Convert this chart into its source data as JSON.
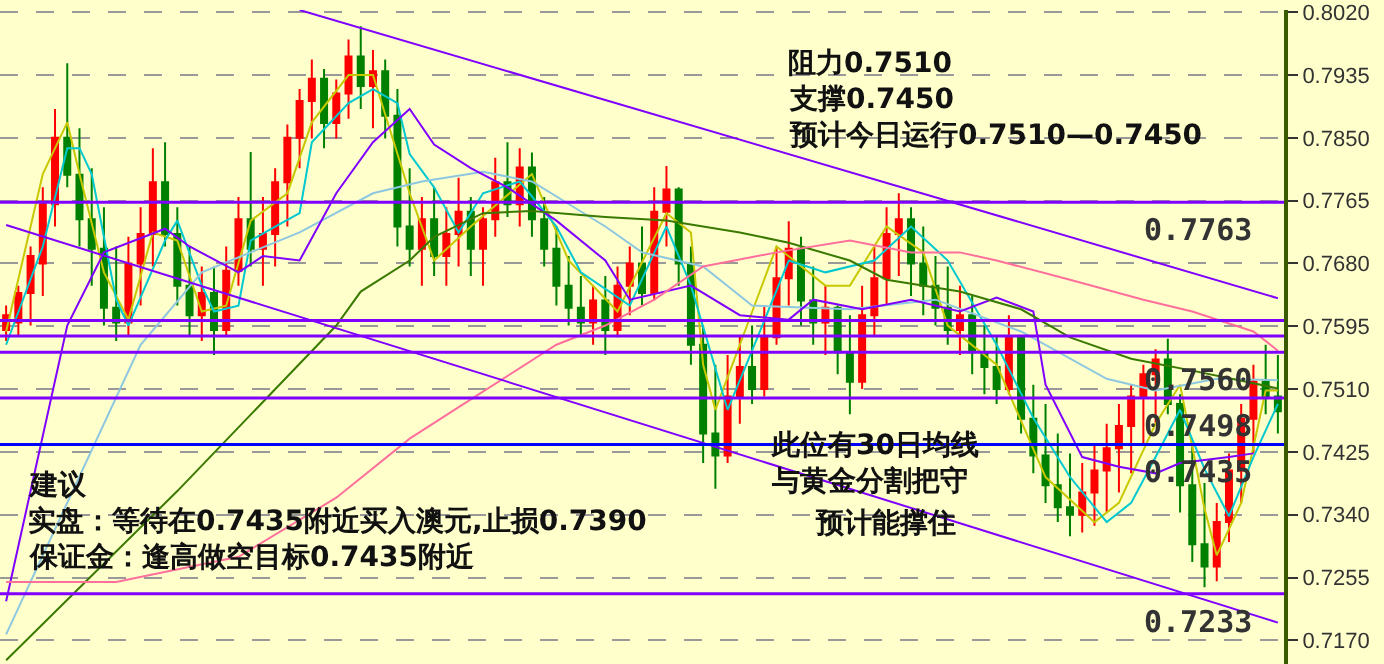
{
  "chart_data": {
    "type": "candlestick",
    "categories": [
      null,
      null,
      null,
      null,
      null,
      null,
      null,
      null,
      null,
      null,
      null,
      null,
      null,
      null,
      null,
      null,
      null,
      null,
      null,
      null,
      null,
      null,
      null,
      null,
      null,
      null,
      null,
      null,
      null,
      null,
      null,
      null,
      null,
      null,
      null,
      null,
      null,
      null,
      null,
      null,
      null,
      null,
      null,
      null,
      null,
      null,
      null,
      null,
      null,
      null,
      null,
      null,
      null,
      null,
      null,
      null,
      null,
      null,
      null,
      null,
      null,
      null,
      null,
      null,
      null,
      null,
      null,
      null,
      null,
      null,
      null,
      null,
      null,
      null,
      null,
      null,
      null,
      null,
      null,
      null,
      null,
      null,
      null,
      null,
      null,
      null,
      null,
      null,
      null,
      null,
      null,
      null,
      null,
      null,
      null,
      null,
      null,
      null,
      null,
      null,
      null,
      null,
      null,
      null,
      null
    ],
    "ohlc": [
      [
        0.759,
        0.7623,
        0.7575,
        0.761
      ],
      [
        0.76,
        0.765,
        0.7583,
        0.764
      ],
      [
        0.764,
        0.7703,
        0.7596,
        0.769
      ],
      [
        0.768,
        0.7783,
        0.7636,
        0.776
      ],
      [
        0.776,
        0.7889,
        0.773,
        0.785
      ],
      [
        0.785,
        0.7951,
        0.7783,
        0.78
      ],
      [
        0.78,
        0.7863,
        0.7703,
        0.774
      ],
      [
        0.774,
        0.7809,
        0.765,
        0.77
      ],
      [
        0.77,
        0.7756,
        0.7596,
        0.762
      ],
      [
        0.762,
        0.7703,
        0.7575,
        0.76
      ],
      [
        0.76,
        0.7716,
        0.7583,
        0.768
      ],
      [
        0.768,
        0.7756,
        0.7623,
        0.772
      ],
      [
        0.772,
        0.7836,
        0.7676,
        0.779
      ],
      [
        0.779,
        0.7844,
        0.7703,
        0.772
      ],
      [
        0.772,
        0.7756,
        0.7623,
        0.765
      ],
      [
        0.765,
        0.7703,
        0.7583,
        0.761
      ],
      [
        0.761,
        0.7676,
        0.7575,
        0.764
      ],
      [
        0.764,
        0.7676,
        0.7556,
        0.759
      ],
      [
        0.759,
        0.7703,
        0.7583,
        0.767
      ],
      [
        0.767,
        0.777,
        0.765,
        0.774
      ],
      [
        0.774,
        0.7831,
        0.7676,
        0.77
      ],
      [
        0.77,
        0.777,
        0.765,
        0.772
      ],
      [
        0.772,
        0.7809,
        0.7676,
        0.779
      ],
      [
        0.779,
        0.7868,
        0.773,
        0.785
      ],
      [
        0.785,
        0.7916,
        0.7809,
        0.79
      ],
      [
        0.79,
        0.7956,
        0.7849,
        0.793
      ],
      [
        0.793,
        0.7943,
        0.7836,
        0.787
      ],
      [
        0.787,
        0.7929,
        0.7849,
        0.791
      ],
      [
        0.791,
        0.7983,
        0.7876,
        0.796
      ],
      [
        0.796,
        0.8001,
        0.7889,
        0.792
      ],
      [
        0.792,
        0.7969,
        0.7863,
        0.794
      ],
      [
        0.794,
        0.7956,
        0.7849,
        0.788
      ],
      [
        0.788,
        0.7916,
        0.7703,
        0.773
      ],
      [
        0.773,
        0.7809,
        0.7676,
        0.77
      ],
      [
        0.77,
        0.777,
        0.765,
        0.774
      ],
      [
        0.774,
        0.7783,
        0.7663,
        0.769
      ],
      [
        0.769,
        0.7756,
        0.765,
        0.772
      ],
      [
        0.772,
        0.7796,
        0.7676,
        0.775
      ],
      [
        0.775,
        0.777,
        0.7663,
        0.77
      ],
      [
        0.77,
        0.7756,
        0.765,
        0.774
      ],
      [
        0.774,
        0.7823,
        0.7716,
        0.779
      ],
      [
        0.779,
        0.7844,
        0.7743,
        0.776
      ],
      [
        0.776,
        0.7836,
        0.773,
        0.781
      ],
      [
        0.781,
        0.783,
        0.7716,
        0.774
      ],
      [
        0.774,
        0.777,
        0.7676,
        0.77
      ],
      [
        0.77,
        0.773,
        0.7623,
        0.765
      ],
      [
        0.765,
        0.769,
        0.7596,
        0.762
      ],
      [
        0.762,
        0.7663,
        0.7583,
        0.76
      ],
      [
        0.76,
        0.765,
        0.757,
        0.763
      ],
      [
        0.763,
        0.7663,
        0.7556,
        0.759
      ],
      [
        0.759,
        0.7676,
        0.758,
        0.765
      ],
      [
        0.765,
        0.7703,
        0.761,
        0.768
      ],
      [
        0.768,
        0.773,
        0.7623,
        0.764
      ],
      [
        0.764,
        0.7783,
        0.763,
        0.775
      ],
      [
        0.775,
        0.7812,
        0.7703,
        0.778
      ],
      [
        0.778,
        0.7783,
        0.765,
        0.768
      ],
      [
        0.768,
        0.7703,
        0.7543,
        0.757
      ],
      [
        0.757,
        0.7596,
        0.741,
        0.745
      ],
      [
        0.745,
        0.7543,
        0.7375,
        0.742
      ],
      [
        0.742,
        0.7556,
        0.741,
        0.75
      ],
      [
        0.75,
        0.7583,
        0.7463,
        0.754
      ],
      [
        0.754,
        0.7596,
        0.749,
        0.751
      ],
      [
        0.751,
        0.7623,
        0.75,
        0.758
      ],
      [
        0.758,
        0.7703,
        0.757,
        0.766
      ],
      [
        0.766,
        0.7737,
        0.7623,
        0.77
      ],
      [
        0.77,
        0.7716,
        0.7596,
        0.763
      ],
      [
        0.763,
        0.7676,
        0.757,
        0.76
      ],
      [
        0.76,
        0.765,
        0.7556,
        0.762
      ],
      [
        0.762,
        0.7623,
        0.753,
        0.756
      ],
      [
        0.756,
        0.761,
        0.7476,
        0.752
      ],
      [
        0.752,
        0.765,
        0.751,
        0.761
      ],
      [
        0.761,
        0.7703,
        0.7583,
        0.766
      ],
      [
        0.766,
        0.7756,
        0.7623,
        0.772
      ],
      [
        0.772,
        0.7775,
        0.7663,
        0.774
      ],
      [
        0.774,
        0.7756,
        0.7636,
        0.768
      ],
      [
        0.768,
        0.773,
        0.761,
        0.765
      ],
      [
        0.765,
        0.769,
        0.7596,
        0.762
      ],
      [
        0.762,
        0.7676,
        0.757,
        0.759
      ],
      [
        0.759,
        0.765,
        0.7556,
        0.761
      ],
      [
        0.761,
        0.7636,
        0.753,
        0.756
      ],
      [
        0.756,
        0.7596,
        0.7503,
        0.754
      ],
      [
        0.754,
        0.7583,
        0.749,
        0.751
      ],
      [
        0.751,
        0.761,
        0.7503,
        0.758
      ],
      [
        0.758,
        0.7583,
        0.745,
        0.747
      ],
      [
        0.747,
        0.7516,
        0.7396,
        0.742
      ],
      [
        0.742,
        0.749,
        0.7356,
        0.738
      ],
      [
        0.738,
        0.745,
        0.733,
        0.735
      ],
      [
        0.735,
        0.7423,
        0.7311,
        0.734
      ],
      [
        0.734,
        0.741,
        0.7316,
        0.737
      ],
      [
        0.737,
        0.7436,
        0.7325,
        0.74
      ],
      [
        0.74,
        0.7463,
        0.7343,
        0.743
      ],
      [
        0.743,
        0.749,
        0.737,
        0.746
      ],
      [
        0.746,
        0.7516,
        0.7396,
        0.75
      ],
      [
        0.75,
        0.7543,
        0.7436,
        0.753
      ],
      [
        0.753,
        0.7564,
        0.7463,
        0.755
      ],
      [
        0.755,
        0.7578,
        0.7476,
        0.749
      ],
      [
        0.749,
        0.7503,
        0.7343,
        0.738
      ],
      [
        0.738,
        0.7436,
        0.7276,
        0.73
      ],
      [
        0.73,
        0.7383,
        0.7242,
        0.727
      ],
      [
        0.727,
        0.7356,
        0.725,
        0.733
      ],
      [
        0.733,
        0.7423,
        0.7303,
        0.74
      ],
      [
        0.74,
        0.749,
        0.7356,
        0.747
      ],
      [
        0.747,
        0.7543,
        0.7423,
        0.752
      ],
      [
        0.752,
        0.757,
        0.7476,
        0.75
      ],
      [
        0.75,
        0.7556,
        0.745,
        0.748
      ]
    ],
    "colors": [
      "#ff0000",
      "#ff0000",
      "#ff0000",
      "#ff0000",
      "#ff0000",
      "#008000",
      "#008000",
      "#008000",
      "#008000",
      "#008000",
      "#ff0000",
      "#ff0000",
      "#ff0000",
      "#008000",
      "#008000",
      "#008000",
      "#ff0000",
      "#008000",
      "#ff0000",
      "#ff0000",
      "#008000",
      "#ff0000",
      "#ff0000",
      "#ff0000",
      "#ff0000",
      "#ff0000",
      "#008000",
      "#ff0000",
      "#ff0000",
      "#008000",
      "#ff0000",
      "#008000",
      "#008000",
      "#008000",
      "#ff0000",
      "#008000",
      "#ff0000",
      "#ff0000",
      "#008000",
      "#ff0000",
      "#ff0000",
      "#008000",
      "#ff0000",
      "#008000",
      "#008000",
      "#008000",
      "#008000",
      "#008000",
      "#ff0000",
      "#008000",
      "#ff0000",
      "#ff0000",
      "#008000",
      "#ff0000",
      "#ff0000",
      "#008000",
      "#008000",
      "#008000",
      "#008000",
      "#ff0000",
      "#ff0000",
      "#008000",
      "#ff0000",
      "#ff0000",
      "#ff0000",
      "#008000",
      "#008000",
      "#ff0000",
      "#008000",
      "#008000",
      "#ff0000",
      "#ff0000",
      "#ff0000",
      "#ff0000",
      "#008000",
      "#008000",
      "#008000",
      "#008000",
      "#ff0000",
      "#008000",
      "#008000",
      "#008000",
      "#ff0000",
      "#008000",
      "#008000",
      "#008000",
      "#008000",
      "#008000",
      "#ff0000",
      "#ff0000",
      "#ff0000",
      "#ff0000",
      "#ff0000",
      "#ff0000",
      "#ff0000",
      "#008000",
      "#008000",
      "#008000",
      "#008000",
      "#ff0000",
      "#ff0000",
      "#ff0000",
      "#ff0000",
      "#008000",
      "#008000"
    ],
    "series": [
      {
        "type": "line",
        "color": "#c8c800",
        "values": [
          0.7588,
          null,
          null,
          0.7801,
          null,
          0.7871,
          0.7801,
          null,
          0.7668,
          null,
          0.7604,
          null,
          0.7722,
          null,
          0.7711,
          null,
          0.7615,
          null,
          0.7623,
          null,
          0.7738,
          null,
          null,
          0.7775,
          null,
          0.7871,
          null,
          null,
          0.7935,
          null,
          0.7935,
          null,
          null,
          0.7775,
          null,
          0.7684,
          null,
          null,
          0.773,
          null,
          null,
          null,
          null,
          0.7801,
          null,
          null,
          0.7684,
          null,
          null,
          null,
          0.7615,
          null,
          null,
          null,
          0.7748,
          null,
          0.7722,
          0.7543,
          0.7482,
          null,
          0.757,
          null,
          null,
          0.7703,
          null,
          null,
          null,
          0.765,
          null,
          0.765,
          null,
          null,
          0.773,
          null,
          null,
          0.7695,
          null,
          0.7596,
          null,
          null,
          null,
          0.7543,
          null,
          null,
          null,
          0.7391,
          null,
          null,
          null,
          0.733,
          null,
          0.7356,
          null,
          null,
          0.7463,
          null,
          0.7516,
          null,
          0.7348,
          0.7285,
          null,
          0.7356,
          null,
          0.7508,
          0.7508
        ]
      },
      {
        "type": "line",
        "color": "#00c8d0",
        "values": [
          0.757,
          null,
          null,
          0.7703,
          null,
          0.7836,
          0.7836,
          0.7801,
          null,
          0.7631,
          0.7596,
          null,
          null,
          0.7711,
          0.7738,
          null,
          0.765,
          0.7615,
          null,
          0.7623,
          0.7711,
          null,
          0.773,
          null,
          0.7748,
          0.7844,
          null,
          null,
          0.7897,
          null,
          0.7916,
          null,
          0.7897,
          0.7828,
          null,
          0.7783,
          null,
          0.7722,
          null,
          0.7775,
          null,
          null,
          0.7791,
          null,
          null,
          0.773,
          null,
          0.7668,
          null,
          null,
          null,
          0.7623,
          null,
          null,
          0.773,
          null,
          0.765,
          null,
          null,
          0.7482,
          null,
          0.7562,
          null,
          null,
          0.7684,
          null,
          null,
          0.7668,
          null,
          null,
          null,
          0.7684,
          null,
          null,
          0.773,
          null,
          null,
          0.7684,
          null,
          null,
          null,
          0.757,
          null,
          null,
          0.7471,
          null,
          null,
          0.7391,
          null,
          null,
          0.733,
          null,
          0.7356,
          null,
          0.7418,
          null,
          0.7482,
          null,
          0.7402,
          null,
          0.7338,
          null,
          0.7418,
          null,
          0.749
        ]
      },
      {
        "type": "line",
        "color": "#8ec8e0",
        "values": [
          0.7178,
          null,
          null,
          null,
          null,
          null,
          null,
          null,
          null,
          null,
          null,
          0.757,
          null,
          null,
          null,
          null,
          0.7668,
          null,
          null,
          null,
          0.7695,
          null,
          null,
          null,
          0.7722,
          null,
          null,
          null,
          null,
          null,
          0.7775,
          null,
          null,
          null,
          0.7791,
          null,
          null,
          null,
          null,
          0.7804,
          null,
          null,
          null,
          0.7791,
          null,
          null,
          null,
          null,
          null,
          0.773,
          null,
          null,
          0.7695,
          null,
          null,
          null,
          null,
          0.7676,
          null,
          null,
          null,
          0.7623,
          null,
          null,
          null,
          null,
          null,
          null,
          null,
          0.7618,
          null,
          null,
          null,
          null,
          null,
          null,
          0.7631,
          null,
          null,
          null,
          null,
          null,
          null,
          0.7588,
          null,
          null,
          null,
          null,
          null,
          null,
          0.7524,
          null,
          null,
          null,
          0.7508,
          null,
          null,
          null,
          null,
          0.7524,
          null,
          null,
          null,
          null,
          0.7522
        ]
      },
      {
        "type": "line",
        "color": "#8000ff",
        "values": [
          0.7223,
          null,
          null,
          null,
          null,
          0.7596,
          null,
          null,
          0.7695,
          null,
          null,
          null,
          null,
          0.7727,
          null,
          0.7703,
          null,
          null,
          null,
          0.7668,
          null,
          0.769,
          null,
          null,
          0.7684,
          null,
          null,
          0.7775,
          null,
          null,
          0.7844,
          null,
          null,
          0.7889,
          null,
          0.7841,
          null,
          null,
          0.7809,
          null,
          null,
          0.7783,
          null,
          null,
          null,
          0.7738,
          null,
          null,
          null,
          0.7684,
          null,
          0.7631,
          null,
          null,
          null,
          null,
          0.765,
          null,
          null,
          null,
          0.761,
          null,
          null,
          null,
          0.7604,
          null,
          0.7631,
          null,
          null,
          null,
          0.7618,
          null,
          null,
          null,
          0.7631,
          null,
          null,
          null,
          0.7615,
          null,
          null,
          0.7634,
          null,
          null,
          0.7615,
          0.7516,
          null,
          null,
          0.7418,
          null,
          null,
          0.7405,
          null,
          null,
          0.7396,
          null,
          0.741,
          null,
          null,
          null,
          0.7418,
          null,
          0.7423,
          null,
          null
        ]
      },
      {
        "type": "line",
        "color": "#3a7a00",
        "values": [
          0.7143,
          null,
          null,
          null,
          null,
          null,
          null,
          null,
          null,
          null,
          null,
          null,
          null,
          null,
          0.7372,
          null,
          null,
          null,
          null,
          null,
          null,
          null,
          null,
          null,
          null,
          null,
          null,
          0.7596,
          null,
          0.7642,
          null,
          null,
          null,
          0.7684,
          null,
          0.7716,
          null,
          null,
          null,
          0.7748,
          null,
          null,
          null,
          0.7751,
          null,
          null,
          null,
          null,
          null,
          0.7743,
          null,
          null,
          null,
          null,
          0.7738,
          null,
          null,
          null,
          null,
          null,
          0.7722,
          null,
          null,
          null,
          0.7708,
          null,
          null,
          null,
          null,
          0.7684,
          null,
          null,
          0.7658,
          null,
          null,
          null,
          null,
          null,
          0.7642,
          null,
          null,
          null,
          null,
          0.7618,
          null,
          null,
          null,
          0.758,
          null,
          null,
          null,
          null,
          0.7551,
          null,
          null,
          null,
          null,
          0.7535,
          null,
          null,
          null,
          null,
          null,
          null,
          0.7511
        ]
      },
      {
        "type": "line",
        "color": "#ff6f9c",
        "values": [
          0.7249,
          null,
          null,
          null,
          null,
          null,
          null,
          null,
          null,
          0.7249,
          null,
          null,
          null,
          null,
          null,
          null,
          null,
          null,
          null,
          0.7283,
          null,
          null,
          null,
          null,
          null,
          null,
          null,
          0.7363,
          null,
          null,
          null,
          null,
          null,
          0.7443,
          null,
          null,
          null,
          null,
          0.7496,
          null,
          null,
          null,
          null,
          null,
          null,
          0.757,
          null,
          null,
          null,
          0.7596,
          null,
          null,
          null,
          0.7631,
          null,
          null,
          null,
          0.7676,
          null,
          null,
          null,
          null,
          null,
          0.7695,
          null,
          null,
          null,
          null,
          null,
          0.7711,
          null,
          null,
          null,
          null,
          0.7695,
          null,
          null,
          null,
          0.7695,
          null,
          null,
          0.7684,
          null,
          null,
          null,
          null,
          null,
          0.7658,
          null,
          null,
          null,
          null,
          null,
          0.7631,
          null,
          null,
          null,
          0.7615,
          null,
          null,
          null,
          null,
          0.7588,
          null,
          0.7562
        ]
      },
      {
        "type": "line",
        "color": "#8000ff",
        "values": [
          null,
          null,
          null,
          null,
          null,
          null,
          null,
          null,
          null,
          null,
          null,
          null,
          null,
          null,
          null,
          null,
          null,
          null,
          null,
          null,
          null,
          null,
          null,
          null,
          0.8023,
          null,
          null,
          null,
          null,
          null,
          null,
          null,
          null,
          null,
          null,
          null,
          null,
          null,
          null,
          null,
          null,
          null,
          null,
          null,
          null,
          null,
          null,
          null,
          null,
          null,
          null,
          null,
          null,
          null,
          null,
          null,
          null,
          null,
          null,
          null,
          null,
          null,
          null,
          null,
          null,
          null,
          null,
          null,
          null,
          null,
          null,
          null,
          null,
          null,
          null,
          null,
          null,
          null,
          null,
          null,
          null,
          null,
          null,
          null,
          null,
          null,
          null,
          null,
          null,
          null,
          null,
          null,
          null,
          null,
          null,
          null,
          null,
          null,
          null,
          null,
          null,
          null,
          null,
          null,
          0.7633
        ]
      },
      {
        "type": "line",
        "color": "#8000ff",
        "values": [
          0.7732,
          null,
          null,
          null,
          null,
          null,
          null,
          null,
          null,
          null,
          null,
          null,
          null,
          null,
          null,
          null,
          null,
          null,
          null,
          null,
          null,
          null,
          null,
          null,
          null,
          null,
          null,
          null,
          null,
          null,
          null,
          null,
          null,
          null,
          null,
          null,
          null,
          null,
          null,
          null,
          null,
          null,
          null,
          null,
          null,
          null,
          null,
          null,
          null,
          null,
          null,
          null,
          null,
          null,
          null,
          null,
          null,
          null,
          null,
          null,
          null,
          null,
          null,
          null,
          null,
          null,
          null,
          null,
          null,
          null,
          null,
          null,
          null,
          null,
          null,
          null,
          null,
          null,
          null,
          null,
          null,
          null,
          null,
          null,
          null,
          null,
          null,
          null,
          null,
          null,
          null,
          null,
          null,
          null,
          null,
          null,
          null,
          null,
          null,
          null,
          null,
          null,
          null,
          null,
          0.7194
        ]
      }
    ],
    "ylim": [
      0.7138,
      0.8023
    ],
    "yticks": [
      {
        "value": 0.802,
        "label": "0.8020"
      },
      0.7935,
      {
        "value": 0.785,
        "label": "0.7850"
      },
      0.7765,
      {
        "value": 0.768,
        "label": "0.7680"
      },
      0.7595,
      {
        "value": 0.751,
        "label": "0.7510"
      },
      0.7425,
      {
        "value": 0.734,
        "label": "0.7340"
      },
      0.7255,
      {
        "value": 0.717,
        "label": "0.7170"
      }
    ],
    "grid": "y",
    "tick_labels": "y",
    "ref_lines": [
      {
        "axis": "y",
        "value": 0.7763,
        "label": "0.7763",
        "color": "#8000ff"
      },
      {
        "axis": "y",
        "value": 0.7603,
        "label": null,
        "color": "#8000ff"
      },
      {
        "axis": "y",
        "value": 0.7582,
        "label": null,
        "color": "#8000ff"
      },
      {
        "axis": "y",
        "value": 0.756,
        "label": "0.7560",
        "color": "#8000ff"
      },
      {
        "axis": "y",
        "value": 0.7498,
        "label": "0.7498",
        "color": "#8000ff"
      },
      {
        "axis": "y",
        "value": 0.7435,
        "label": "0.7435",
        "color": "#0000ff"
      },
      {
        "axis": "y",
        "value": 0.7233,
        "label": "0.7233",
        "color": "#8000ff"
      }
    ],
    "annotations": [
      "阻力0.7510",
      "支撑0.7450",
      "预计今日运行0.7510—0.7450",
      "此位有30日均线与黄金分割把守",
      "预计能撑住",
      "建议",
      "实盘：等待在0.7435附近买入澳元,止损0.7390",
      "保证金：逢高做空目标0.7435附近"
    ]
  }
}
